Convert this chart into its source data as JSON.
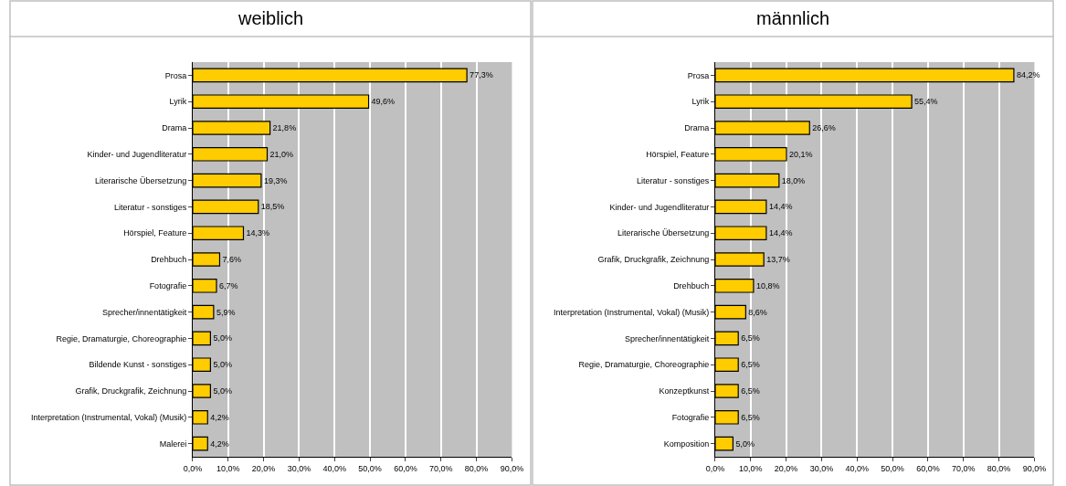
{
  "chart_data": [
    {
      "type": "bar",
      "title": "weiblich",
      "orientation": "horizontal",
      "grid": "x",
      "categories": [
        "Prosa",
        "Lyrik",
        "Drama",
        "Kinder- und Jugendliteratur",
        "Literarische Übersetzung",
        "Literatur - sonstiges",
        "Hörspiel, Feature",
        "Drehbuch",
        "Fotografie",
        "Sprecher/innentätigkeit",
        "Regie, Dramaturgie, Choreographie",
        "Bildende Kunst - sonstiges",
        "Grafik, Druckgrafik, Zeichnung",
        "Interpretation (Instrumental, Vokal) (Musik)",
        "Malerei"
      ],
      "series": [
        {
          "color": "#ffcc00",
          "values": [
            77.3,
            49.6,
            21.8,
            21.0,
            19.3,
            18.5,
            14.3,
            7.6,
            6.7,
            5.9,
            5.0,
            5.0,
            5.0,
            4.2,
            4.2
          ],
          "value_labels": [
            "77,3%",
            "49,6%",
            "21,8%",
            "21,0%",
            "19,3%",
            "18,5%",
            "14,3%",
            "7,6%",
            "6,7%",
            "5,9%",
            "5,0%",
            "5,0%",
            "5,0%",
            "4,2%",
            "4,2%"
          ]
        }
      ],
      "xlim": [
        0,
        90
      ],
      "xticks": [
        {
          "value": 0,
          "label": "0,0%"
        },
        {
          "value": 10,
          "label": "10,0%"
        },
        {
          "value": 20,
          "label": "20,0%"
        },
        {
          "value": 30,
          "label": "30,0%"
        },
        {
          "value": 40,
          "label": "40,0%"
        },
        {
          "value": 50,
          "label": "50,0%"
        },
        {
          "value": 60,
          "label": "60,0%"
        },
        {
          "value": 70,
          "label": "70,0%"
        },
        {
          "value": 80,
          "label": "80,0%"
        },
        {
          "value": 90,
          "label": "90,0%"
        }
      ]
    },
    {
      "type": "bar",
      "title": "männlich",
      "orientation": "horizontal",
      "grid": "x",
      "categories": [
        "Prosa",
        "Lyrik",
        "Drama",
        "Hörspiel, Feature",
        "Literatur - sonstiges",
        "Kinder- und Jugendliteratur",
        "Literarische Übersetzung",
        "Grafik, Druckgrafik, Zeichnung",
        "Drehbuch",
        "Interpretation (Instrumental, Vokal) (Musik)",
        "Sprecher/innentätigkeit",
        "Regie, Dramaturgie, Choreographie",
        "Konzeptkunst",
        "Fotografie",
        "Komposition"
      ],
      "series": [
        {
          "color": "#ffcc00",
          "values": [
            84.2,
            55.4,
            26.6,
            20.1,
            18.0,
            14.4,
            14.4,
            13.7,
            10.8,
            8.6,
            6.5,
            6.5,
            6.5,
            6.5,
            5.0
          ],
          "value_labels": [
            "84,2%",
            "55,4%",
            "26,6%",
            "20,1%",
            "18,0%",
            "14,4%",
            "14,4%",
            "13,7%",
            "10,8%",
            "8,6%",
            "6,5%",
            "6,5%",
            "6,5%",
            "6,5%",
            "5,0%"
          ]
        }
      ],
      "xlim": [
        0,
        90
      ],
      "xticks": [
        {
          "value": 0,
          "label": "0,0%"
        },
        {
          "value": 10,
          "label": "10,0%"
        },
        {
          "value": 20,
          "label": "20,0%"
        },
        {
          "value": 30,
          "label": "30,0%"
        },
        {
          "value": 40,
          "label": "40,0%"
        },
        {
          "value": 50,
          "label": "50,0%"
        },
        {
          "value": 60,
          "label": "60,0%"
        },
        {
          "value": 70,
          "label": "70,0%"
        },
        {
          "value": 80,
          "label": "80,0%"
        },
        {
          "value": 90,
          "label": "90,0%"
        }
      ]
    }
  ]
}
